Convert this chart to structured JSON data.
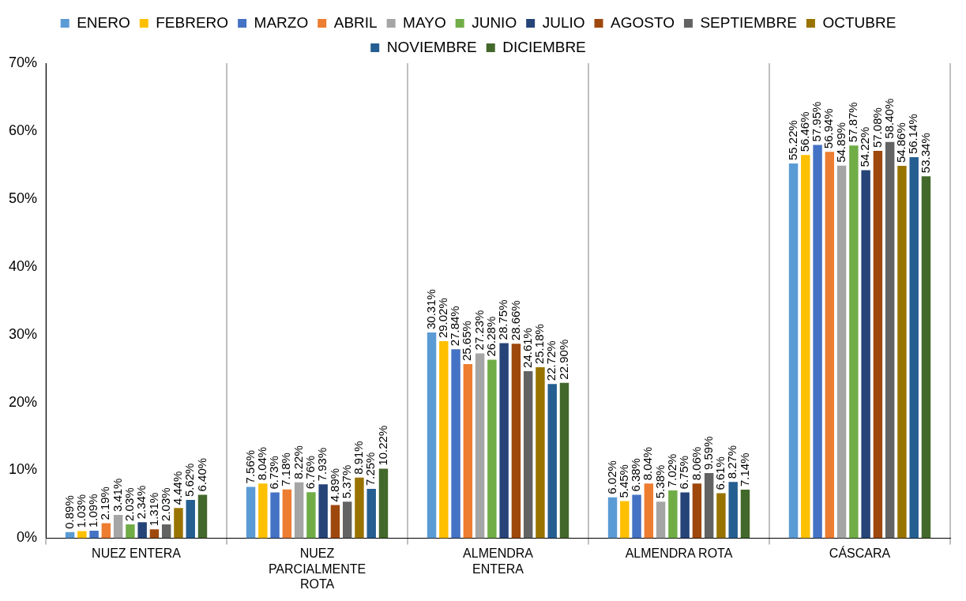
{
  "chart_data": {
    "type": "bar",
    "categories": [
      "NUEZ ENTERA",
      "NUEZ PARCIALMENTE ROTA",
      "ALMENDRA ENTERA",
      "ALMENDRA ROTA",
      "CÁSCARA"
    ],
    "ylim": [
      0,
      70
    ],
    "yticks": [
      {
        "value": 0,
        "label": "0%"
      },
      {
        "value": 10,
        "label": "10%"
      },
      {
        "value": 20,
        "label": "20%"
      },
      {
        "value": 30,
        "label": "30%"
      },
      {
        "value": 40,
        "label": "40%"
      },
      {
        "value": 50,
        "label": "50%"
      },
      {
        "value": 60,
        "label": "60%"
      },
      {
        "value": 70,
        "label": "70%"
      }
    ],
    "grid": "x",
    "legend": "top",
    "series": [
      {
        "name": "ENERO",
        "color": "#5b9bd5",
        "values": [
          0.89,
          7.56,
          30.31,
          6.02,
          55.22
        ],
        "value_labels": [
          "0.89%",
          "7.56%",
          "30.31%",
          "6.02%",
          "55.22%"
        ]
      },
      {
        "name": "FEBRERO",
        "color": "#ffc000",
        "values": [
          1.03,
          8.04,
          29.02,
          5.45,
          56.46
        ],
        "value_labels": [
          "1.03%",
          "8.04%",
          "29.02%",
          "5.45%",
          "56.46%"
        ]
      },
      {
        "name": "MARZO",
        "color": "#4472c4",
        "values": [
          1.09,
          6.73,
          27.84,
          6.38,
          57.95
        ],
        "value_labels": [
          "1.09%",
          "6.73%",
          "27.84%",
          "6.38%",
          "57.95%"
        ]
      },
      {
        "name": "ABRIL",
        "color": "#ed7d31",
        "values": [
          2.19,
          7.18,
          25.65,
          8.04,
          56.94
        ],
        "value_labels": [
          "2.19%",
          "7.18%",
          "25.65%",
          "8.04%",
          "56.94%"
        ]
      },
      {
        "name": "MAYO",
        "color": "#a5a5a5",
        "values": [
          3.41,
          8.22,
          27.23,
          5.38,
          54.89
        ],
        "value_labels": [
          "3.41%",
          "8.22%",
          "27.23%",
          "5.38%",
          "54.89%"
        ]
      },
      {
        "name": "JUNIO",
        "color": "#70ad47",
        "values": [
          2.03,
          6.76,
          26.28,
          7.02,
          57.87
        ],
        "value_labels": [
          "2.03%",
          "6.76%",
          "26.28%",
          "7.02%",
          "57.87%"
        ]
      },
      {
        "name": "JULIO",
        "color": "#264478",
        "values": [
          2.34,
          7.93,
          28.75,
          6.75,
          54.22
        ],
        "value_labels": [
          "2.34%",
          "7.93%",
          "28.75%",
          "6.75%",
          "54.22%"
        ]
      },
      {
        "name": "AGOSTO",
        "color": "#9e480e",
        "values": [
          1.31,
          4.89,
          28.66,
          8.06,
          57.08
        ],
        "value_labels": [
          "1.31%",
          "4.89%",
          "28.66%",
          "8.06%",
          "57.08%"
        ]
      },
      {
        "name": "SEPTIEMBRE",
        "color": "#636363",
        "values": [
          2.03,
          5.37,
          24.61,
          9.59,
          58.4
        ],
        "value_labels": [
          "2.03%",
          "5.37%",
          "24.61%",
          "9.59%",
          "58.40%"
        ]
      },
      {
        "name": "OCTUBRE",
        "color": "#997300",
        "values": [
          4.44,
          8.91,
          25.18,
          6.61,
          54.86
        ],
        "value_labels": [
          "4.44%",
          "8.91%",
          "25.18%",
          "6.61%",
          "54.86%"
        ]
      },
      {
        "name": "NOVIEMBRE",
        "color": "#255e91",
        "values": [
          5.62,
          7.25,
          22.72,
          8.27,
          56.14
        ],
        "value_labels": [
          "5.62%",
          "7.25%",
          "22.72%",
          "8.27%",
          "56.14%"
        ]
      },
      {
        "name": "DICIEMBRE",
        "color": "#43682b",
        "values": [
          6.4,
          10.22,
          22.9,
          7.14,
          53.34
        ],
        "value_labels": [
          "6.40%",
          "10.22%",
          "22.90%",
          "7.14%",
          "53.34%"
        ]
      }
    ]
  }
}
